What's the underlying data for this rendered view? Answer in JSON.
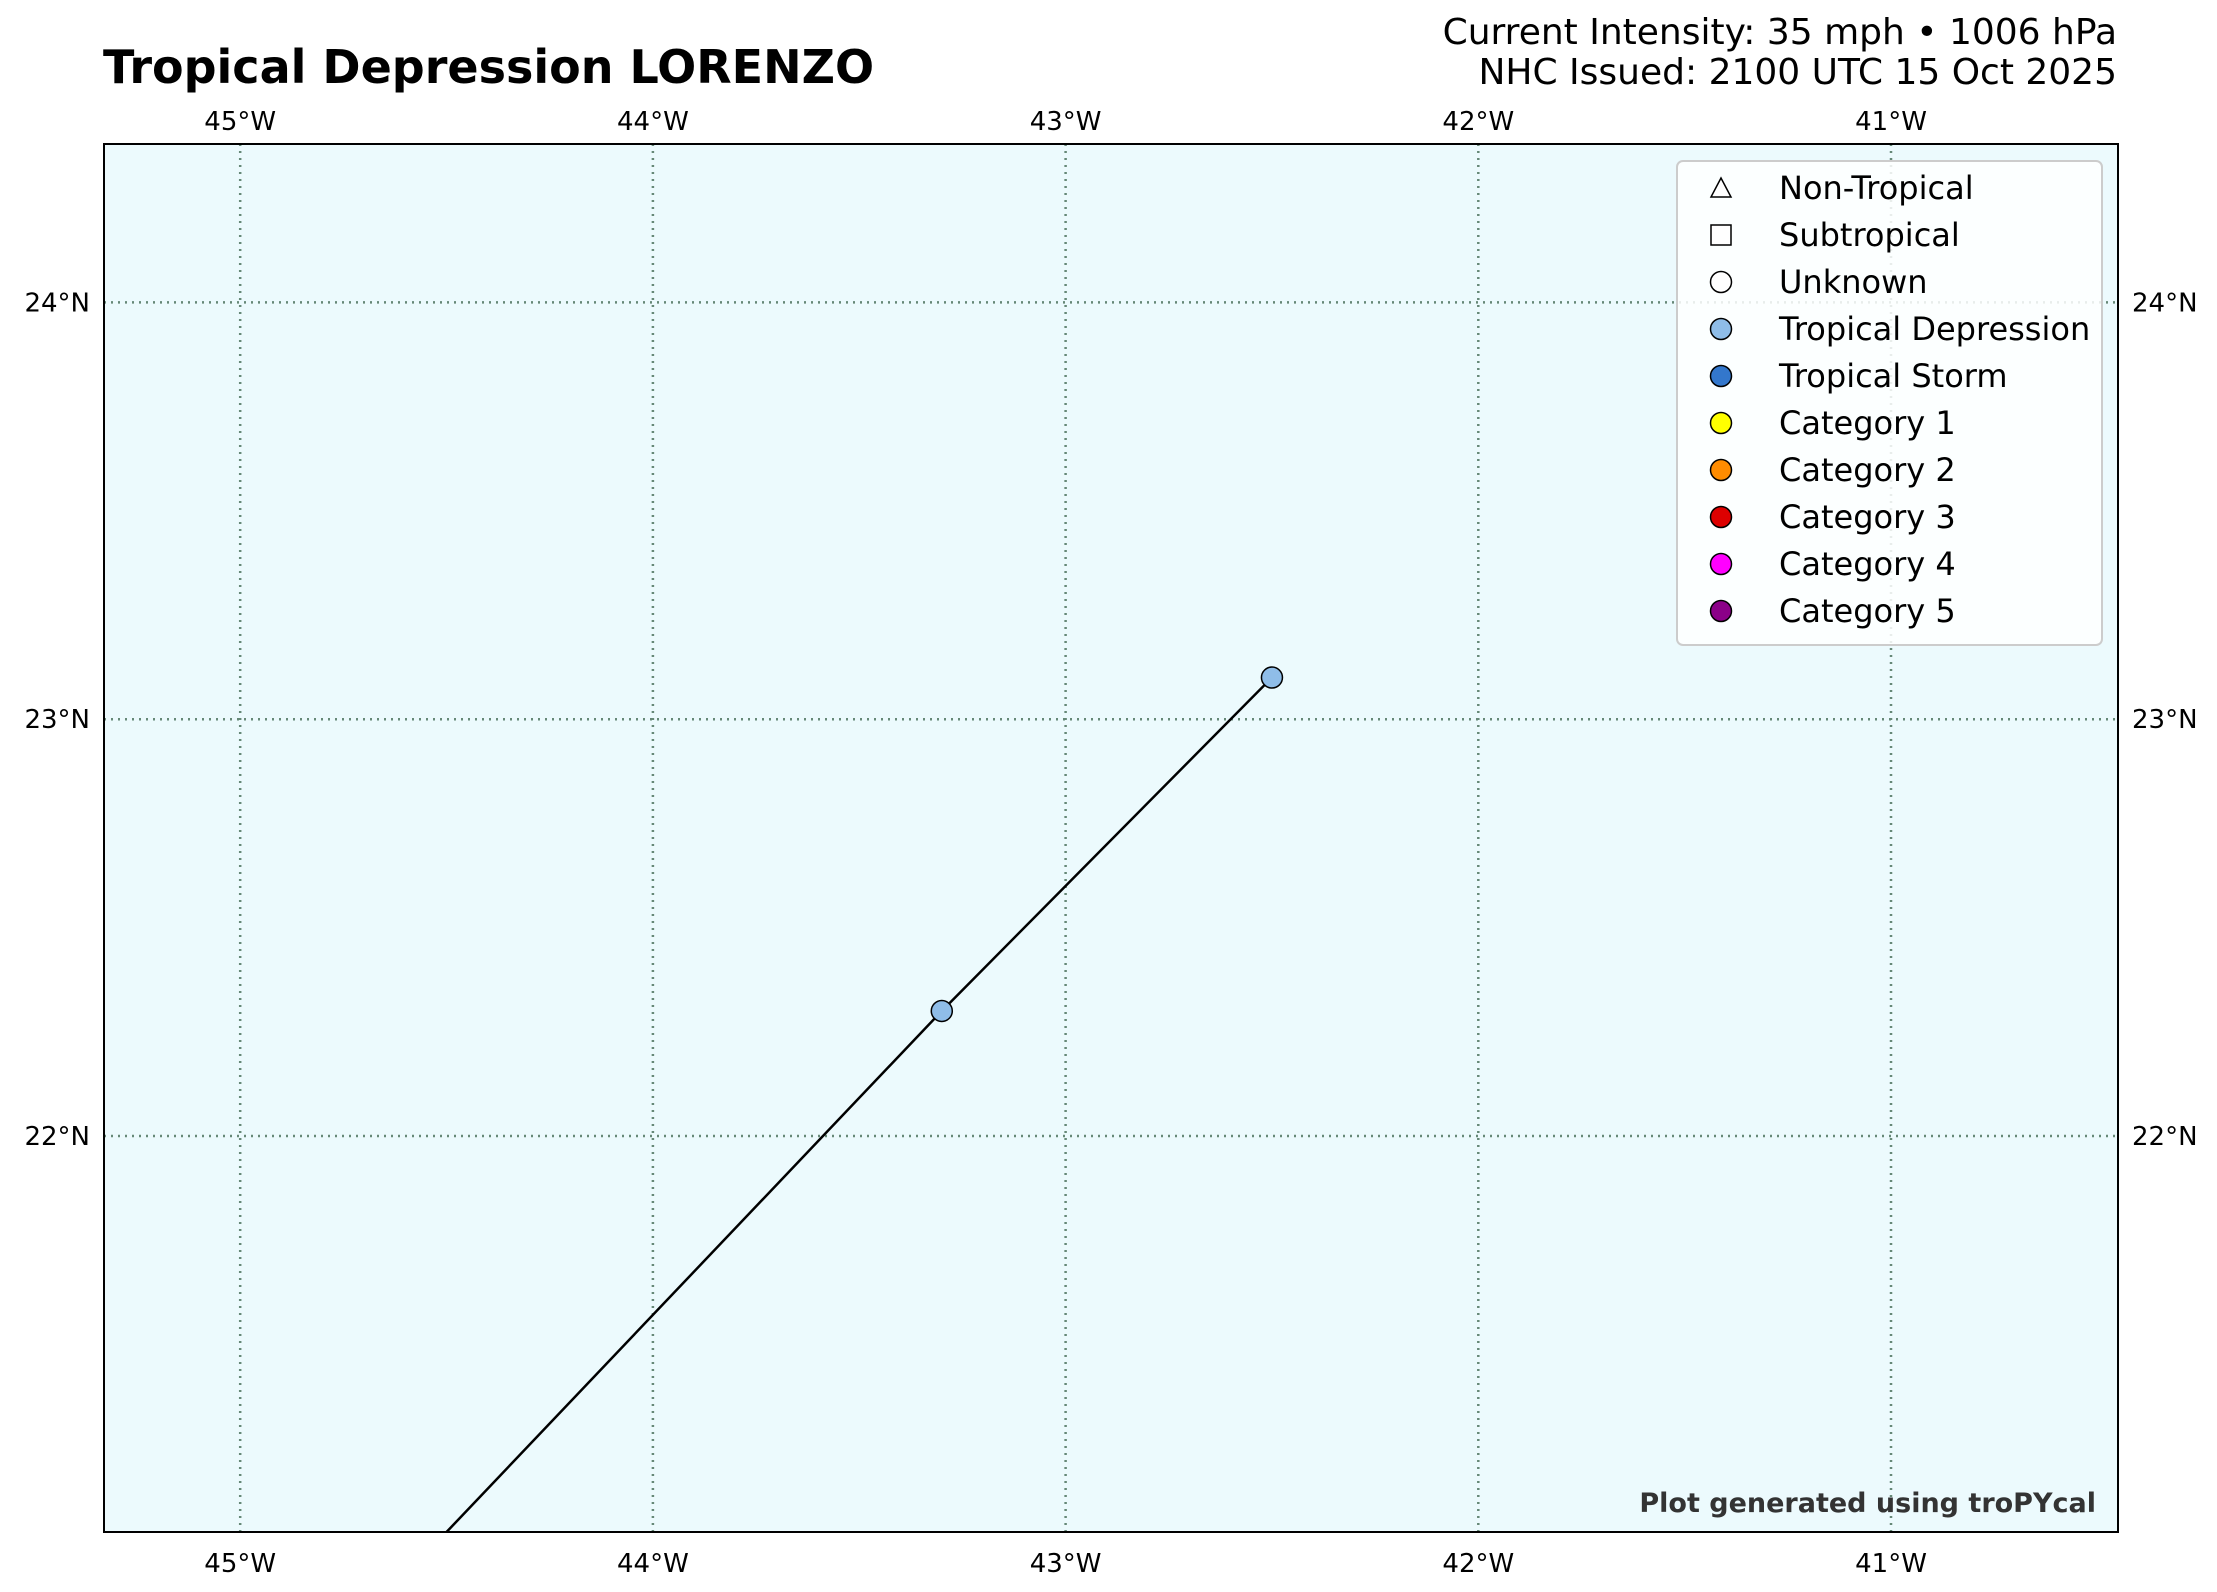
{
  "header": {
    "title": "Tropical Depression LORENZO",
    "intensity": "Current Intensity: 35 mph • 1006 hPa",
    "issued": "NHC Issued: 2100 UTC 15 Oct 2025"
  },
  "map": {
    "lon_range": [
      -45.33,
      -40.45
    ],
    "lat_range": [
      21.05,
      24.38
    ],
    "ocean_color": "#ecfafd",
    "grid_color": "#668877",
    "grid": true,
    "lon_ticks": [
      {
        "value": -45,
        "label": "45°W"
      },
      {
        "value": -44,
        "label": "44°W"
      },
      {
        "value": -43,
        "label": "43°W"
      },
      {
        "value": -42,
        "label": "42°W"
      },
      {
        "value": -41,
        "label": "41°W"
      }
    ],
    "lat_ticks": [
      {
        "value": 24,
        "label": "24°N"
      },
      {
        "value": 23,
        "label": "23°N"
      },
      {
        "value": 22,
        "label": "22°N"
      }
    ],
    "track": [
      {
        "lon": -44.5,
        "lat": 21.05,
        "category": "line"
      },
      {
        "lon": -43.3,
        "lat": 22.3,
        "category": "Tropical Depression"
      },
      {
        "lon": -42.5,
        "lat": 23.1,
        "category": "Tropical Depression"
      }
    ],
    "track_color": "#000000"
  },
  "legend": {
    "placement": "top-right",
    "items": [
      {
        "label": "Non-Tropical",
        "marker": "triangle",
        "color": "#ffffff"
      },
      {
        "label": "Subtropical",
        "marker": "square",
        "color": "#ffffff"
      },
      {
        "label": "Unknown",
        "marker": "circle",
        "color": "#ffffff"
      },
      {
        "label": "Tropical Depression",
        "marker": "circle",
        "color": "#8fbde8"
      },
      {
        "label": "Tropical Storm",
        "marker": "circle",
        "color": "#3377cc"
      },
      {
        "label": "Category 1",
        "marker": "circle",
        "color": "#ffff00"
      },
      {
        "label": "Category 2",
        "marker": "circle",
        "color": "#ff8c00"
      },
      {
        "label": "Category 3",
        "marker": "circle",
        "color": "#dd0000"
      },
      {
        "label": "Category 4",
        "marker": "circle",
        "color": "#ff00ff"
      },
      {
        "label": "Category 5",
        "marker": "circle",
        "color": "#8b0088"
      }
    ]
  },
  "credit": "Plot generated using troPYcal"
}
